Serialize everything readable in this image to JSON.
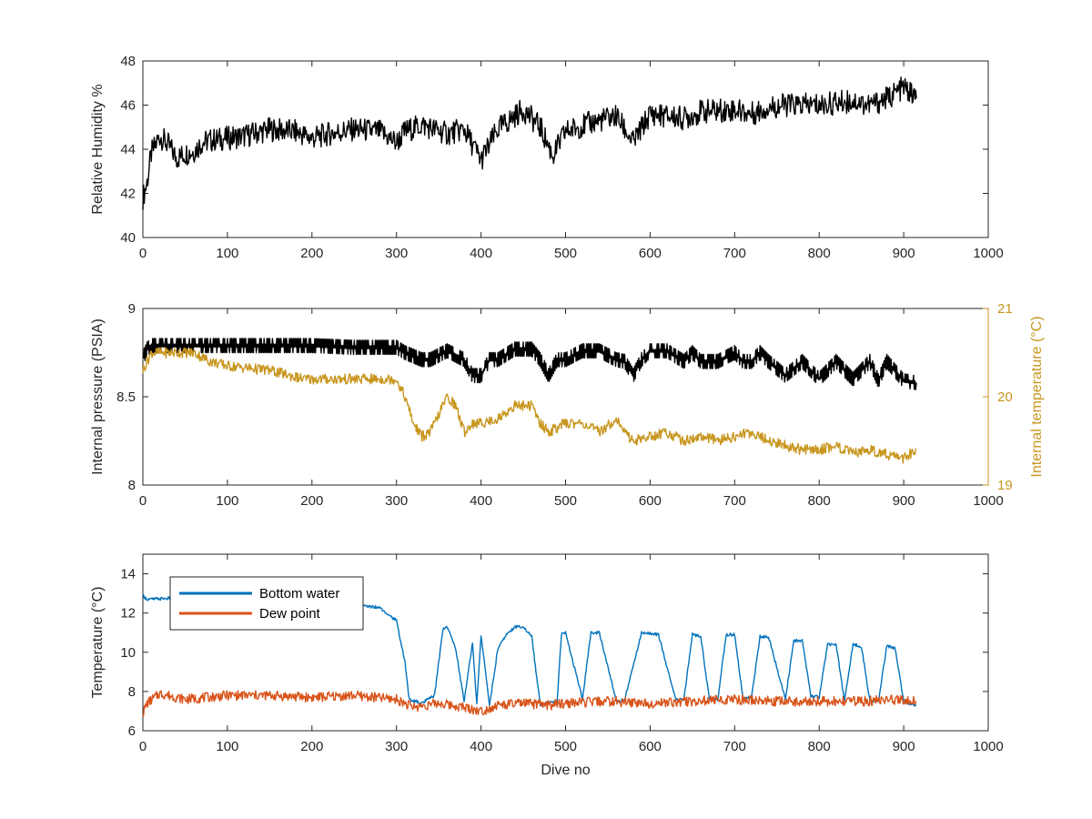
{
  "chart_data": [
    {
      "type": "line",
      "ylabel": "Relative Humidity %",
      "xlim": [
        0,
        1000
      ],
      "ylim": [
        40,
        48
      ],
      "xticks": [
        0,
        100,
        200,
        300,
        400,
        500,
        600,
        700,
        800,
        900,
        1000
      ],
      "yticks": [
        40,
        42,
        44,
        46,
        48
      ],
      "colors": {
        "humidity": "#000000"
      },
      "series": [
        {
          "x": [
            0,
            5,
            10,
            20,
            30,
            40,
            50,
            60,
            70,
            80,
            100,
            120,
            150,
            180,
            200,
            220,
            250,
            280,
            300,
            310,
            330,
            360,
            380,
            400,
            420,
            450,
            470,
            485,
            500,
            530,
            560,
            580,
            600,
            640,
            660,
            700,
            720,
            740,
            760,
            800,
            840,
            860,
            880,
            900,
            915
          ],
          "y": [
            41.8,
            42.5,
            43.8,
            44.6,
            44.2,
            43.6,
            43.8,
            43.9,
            44.3,
            44.4,
            44.5,
            44.6,
            44.9,
            44.8,
            44.5,
            44.7,
            44.9,
            44.8,
            44.3,
            44.8,
            45.1,
            44.7,
            44.9,
            43.5,
            44.9,
            45.8,
            45.0,
            43.7,
            44.8,
            45.2,
            45.5,
            44.3,
            45.6,
            45.4,
            45.7,
            45.8,
            45.6,
            45.9,
            46.0,
            46.0,
            46.2,
            46.0,
            46.3,
            46.8,
            46.3
          ]
        }
      ]
    },
    {
      "type": "line",
      "ylabel": "Internal pressure (PSIA)",
      "y2label": "Internal temperature (°C)",
      "xlim": [
        0,
        1000
      ],
      "ylim": [
        8,
        9
      ],
      "y2lim": [
        19,
        21
      ],
      "xticks": [
        0,
        100,
        200,
        300,
        400,
        500,
        600,
        700,
        800,
        900,
        1000
      ],
      "yticks": [
        8,
        8.5,
        9
      ],
      "y2ticks": [
        19,
        20,
        21
      ],
      "colors": {
        "pressure": "#000000",
        "temperature": "#C8961E"
      },
      "series": [
        {
          "axis": "left",
          "x": [
            0,
            5,
            10,
            50,
            100,
            150,
            200,
            250,
            300,
            310,
            330,
            340,
            360,
            380,
            390,
            400,
            410,
            420,
            440,
            460,
            470,
            480,
            490,
            500,
            520,
            540,
            560,
            570,
            580,
            590,
            600,
            620,
            640,
            650,
            660,
            680,
            700,
            710,
            720,
            730,
            740,
            760,
            780,
            800,
            820,
            840,
            860,
            870,
            880,
            900,
            915
          ],
          "y": [
            8.72,
            8.77,
            8.79,
            8.79,
            8.79,
            8.79,
            8.79,
            8.78,
            8.78,
            8.75,
            8.71,
            8.71,
            8.76,
            8.71,
            8.62,
            8.62,
            8.71,
            8.71,
            8.77,
            8.77,
            8.71,
            8.62,
            8.71,
            8.71,
            8.76,
            8.76,
            8.71,
            8.7,
            8.62,
            8.71,
            8.76,
            8.76,
            8.7,
            8.75,
            8.7,
            8.7,
            8.75,
            8.7,
            8.7,
            8.75,
            8.7,
            8.62,
            8.7,
            8.6,
            8.7,
            8.6,
            8.7,
            8.59,
            8.7,
            8.59,
            8.58
          ]
        },
        {
          "axis": "right",
          "x": [
            0,
            10,
            20,
            40,
            60,
            80,
            100,
            150,
            190,
            200,
            250,
            300,
            310,
            320,
            330,
            340,
            350,
            360,
            370,
            380,
            390,
            400,
            420,
            440,
            460,
            470,
            480,
            500,
            520,
            540,
            560,
            570,
            580,
            600,
            620,
            640,
            660,
            680,
            700,
            720,
            740,
            760,
            780,
            800,
            820,
            840,
            860,
            880,
            900,
            915
          ],
          "y": [
            20.3,
            20.5,
            20.5,
            20.5,
            20.5,
            20.4,
            20.35,
            20.3,
            20.2,
            20.2,
            20.2,
            20.2,
            20.0,
            19.7,
            19.55,
            19.6,
            19.8,
            20.0,
            19.9,
            19.6,
            19.7,
            19.7,
            19.75,
            19.9,
            19.9,
            19.7,
            19.6,
            19.7,
            19.7,
            19.6,
            19.75,
            19.6,
            19.5,
            19.55,
            19.6,
            19.5,
            19.55,
            19.5,
            19.55,
            19.6,
            19.5,
            19.45,
            19.4,
            19.4,
            19.45,
            19.35,
            19.4,
            19.35,
            19.3,
            19.4
          ]
        }
      ]
    },
    {
      "type": "line",
      "xlabel": "Dive no",
      "ylabel": "Temperature (°C)",
      "xlim": [
        0,
        1000
      ],
      "ylim": [
        6,
        15
      ],
      "xticks": [
        0,
        100,
        200,
        300,
        400,
        500,
        600,
        700,
        800,
        900,
        1000
      ],
      "yticks": [
        6,
        8,
        10,
        12,
        14
      ],
      "legend": {
        "position": "top-left",
        "entries": [
          "Bottom water",
          "Dew point"
        ]
      },
      "series": [
        {
          "name": "Bottom water",
          "color": "#0072BD",
          "x": [
            0,
            5,
            10,
            50,
            100,
            150,
            200,
            250,
            280,
            300,
            310,
            315,
            330,
            345,
            355,
            360,
            370,
            380,
            390,
            395,
            400,
            410,
            420,
            430,
            440,
            450,
            460,
            470,
            480,
            490,
            495,
            500,
            520,
            530,
            540,
            560,
            570,
            590,
            595,
            610,
            630,
            640,
            650,
            660,
            670,
            680,
            690,
            700,
            710,
            720,
            730,
            740,
            760,
            770,
            780,
            790,
            800,
            810,
            820,
            830,
            840,
            850,
            860,
            870,
            880,
            890,
            900,
            915
          ],
          "y": [
            12.9,
            12.7,
            12.7,
            12.8,
            12.6,
            12.6,
            12.5,
            12.4,
            12.3,
            11.6,
            9.5,
            7.6,
            7.4,
            7.8,
            11.2,
            11.3,
            10.2,
            7.5,
            10.5,
            7.3,
            10.9,
            7.3,
            10.2,
            10.9,
            11.3,
            11.3,
            10.8,
            7.3,
            7.5,
            7.5,
            10.9,
            11.0,
            7.6,
            11.0,
            11.0,
            7.5,
            7.6,
            11.0,
            11.0,
            10.9,
            7.6,
            7.6,
            10.9,
            10.8,
            7.6,
            7.6,
            10.9,
            10.9,
            7.6,
            7.7,
            10.8,
            10.8,
            7.6,
            10.6,
            10.6,
            7.8,
            7.7,
            10.4,
            10.4,
            7.5,
            10.4,
            10.3,
            7.5,
            7.5,
            10.3,
            10.2,
            7.5,
            7.3
          ]
        },
        {
          "name": "Dew point",
          "color": "#D95319",
          "x": [
            0,
            5,
            20,
            50,
            100,
            150,
            200,
            250,
            300,
            320,
            350,
            380,
            400,
            420,
            450,
            480,
            500,
            550,
            600,
            650,
            700,
            750,
            800,
            850,
            900,
            915
          ],
          "y": [
            6.9,
            7.4,
            7.9,
            7.6,
            7.8,
            7.8,
            7.7,
            7.8,
            7.6,
            7.2,
            7.4,
            7.2,
            7.0,
            7.3,
            7.4,
            7.3,
            7.4,
            7.5,
            7.4,
            7.5,
            7.6,
            7.5,
            7.5,
            7.5,
            7.6,
            7.5
          ]
        }
      ]
    }
  ]
}
